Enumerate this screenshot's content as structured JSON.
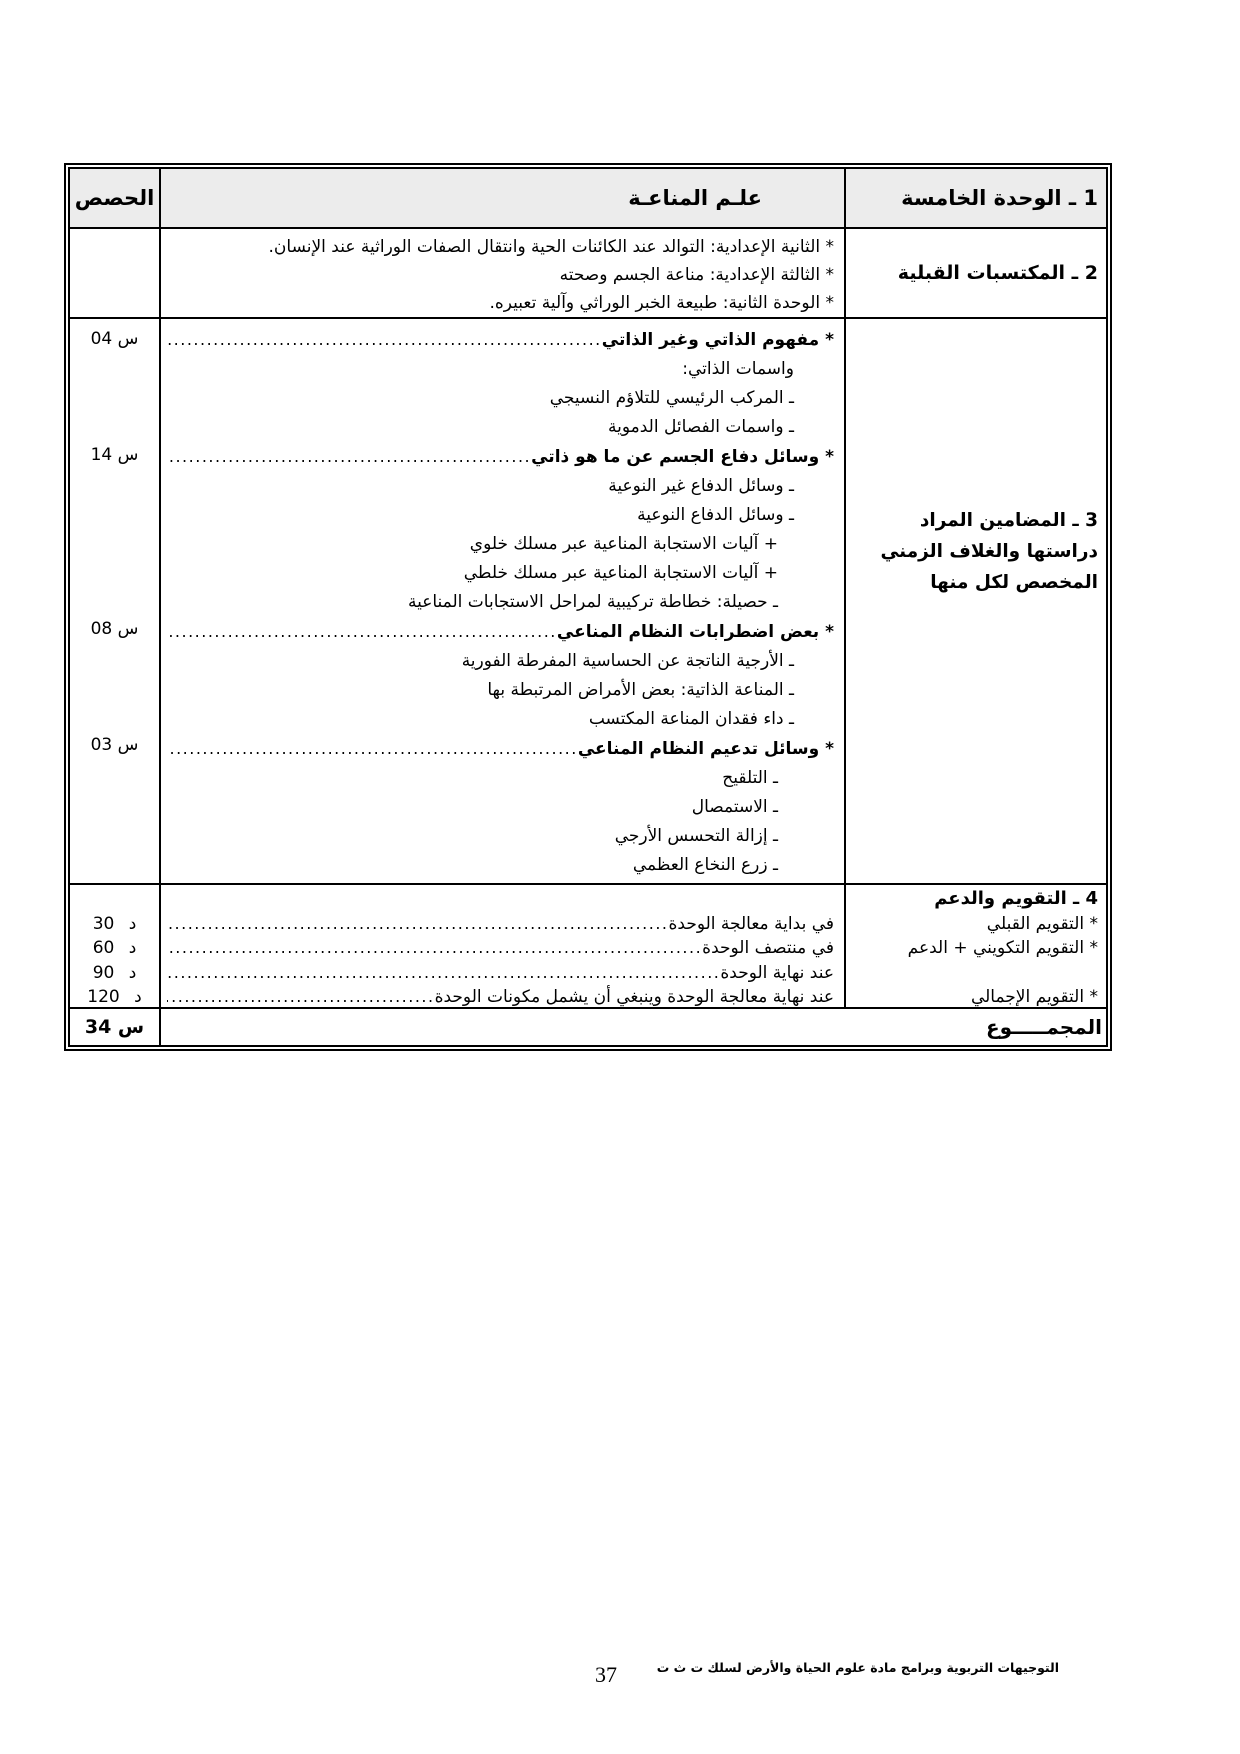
{
  "header": {
    "unit": "1 ـ الوحدة الخامسة",
    "subject": "علـم المناعـة",
    "sessions": "الحصص"
  },
  "prior": {
    "label": "2 ـ المكتسبات القبلية",
    "items": [
      "* الثانية الإعدادية: التوالد عند الكائنات الحية وانتقال الصفات الوراثية عند الإنسان.",
      "* الثالثة الإعدادية: مناعة الجسم وصحته",
      "* الوحدة الثانية: طبيعة الخبر الوراثي وآلية تعبيره."
    ]
  },
  "contents": {
    "label": "3 ـ المضامين المراد دراستها والغلاف الزمني المخصص لكل منها",
    "lines": [
      "* مفهوم الذاتي وغير الذاتي ",
      "واسمات الذاتي:",
      "ـ المركب الرئيسي للتلاؤم النسيجي",
      "ـ واسمات الفصائل الدموية",
      "* وسائل دفاع الجسم عن ما هو ذاتي ",
      "ـ وسائل الدفاع غير النوعية",
      "ـ وسائل الدفاع النوعية",
      "+ آليات الاستجابة المناعية عبر مسلك خلوي",
      "+ آليات الاستجابة المناعية عبر مسلك خلطي",
      "ـ حصيلة: خطاطة تركيبية لمراحل الاستجابات المناعية",
      "* بعض اضطرابات النظام المناعي ",
      "ـ الأرجية الناتجة عن الحساسية المفرطة الفورية",
      "ـ المناعة الذاتية: بعض الأمراض المرتبطة بها",
      "ـ داء فقدان المناعة المكتسب",
      "* وسائل تدعيم النظام المناعي ",
      "ـ التلقيح",
      "ـ الاستمصال",
      "ـ إزالة التحسس الأرجي",
      "ـ زرع النخاع العظمي"
    ],
    "hours": [
      "04 س",
      "14 س",
      "08 س",
      "03 س"
    ]
  },
  "evaluation": {
    "label": "4 ـ التقويم والدعم",
    "types": [
      "* التقويم القبلي",
      "* التقويم التكويني + الدعم",
      "* التقويم الإجمالي"
    ],
    "lines": [
      "في بداية معالجة الوحدة ",
      "في منتصف الوحدة ",
      "عند نهاية الوحدة ",
      "عند نهاية معالجة الوحدة وينبغي أن يشمل مكونات الوحدة "
    ],
    "durations": [
      "30 د",
      "60 د",
      "90 د",
      "120 د"
    ]
  },
  "total": {
    "label": "المجمـــــوع",
    "value": "34 س"
  },
  "footer": {
    "note": "التوجيهات التربوية وبرامج مادة علوم الحياة والأرض لسلك ت ث ت",
    "page_number": "37"
  },
  "leader_dots": "........................................................................................................................................................................................................................................................................"
}
